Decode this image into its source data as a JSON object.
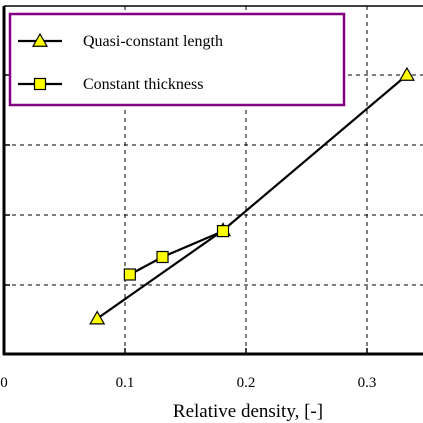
{
  "chart_data": {
    "type": "line",
    "xlabel": "Relative density, [-]",
    "ylabel": "",
    "title": "",
    "xlim": [
      0,
      0.33
    ],
    "ylim": [
      0,
      4.4
    ],
    "x_ticks": [
      0,
      0.1,
      0.2,
      0.3
    ],
    "x_tick_labels": [
      "0",
      "0.1",
      "0.2",
      "0.3"
    ],
    "y_gridlines": [
      1,
      2,
      3,
      4
    ],
    "grid": "dashed",
    "legend_position": "top-left",
    "series": [
      {
        "name": "Quasi-constant length",
        "marker": "triangle",
        "points": [
          {
            "x": 0.077,
            "y": 0.52
          },
          {
            "x": 0.181,
            "y": 1.78
          },
          {
            "x": 0.333,
            "y": 4.0
          }
        ]
      },
      {
        "name": "Constant thickness",
        "marker": "square",
        "points": [
          {
            "x": 0.104,
            "y": 1.15
          },
          {
            "x": 0.131,
            "y": 1.4
          },
          {
            "x": 0.181,
            "y": 1.77
          }
        ]
      }
    ]
  },
  "colors": {
    "marker_fill": "#ffff00",
    "line": "#000000",
    "legend_border": "#800080",
    "grid": "#000000"
  }
}
